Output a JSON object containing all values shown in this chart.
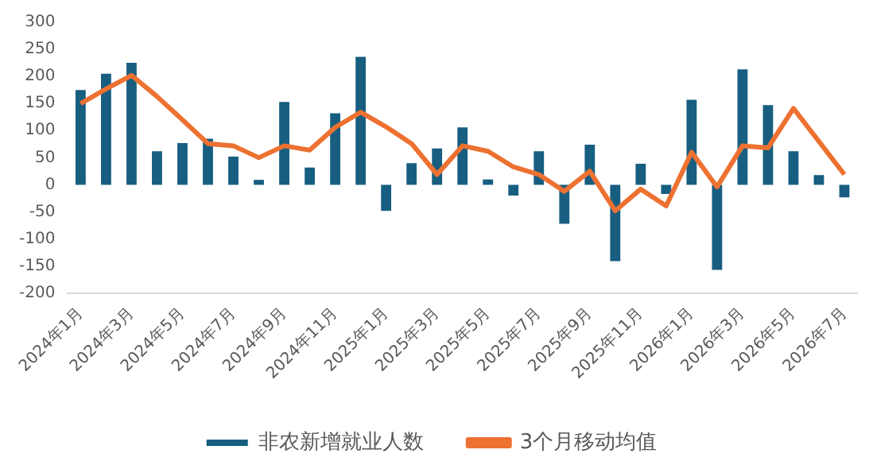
{
  "chart_data": {
    "type": "bar",
    "categories": [
      "2024年1月",
      null,
      "2024年3月",
      null,
      "2024年5月",
      null,
      "2024年7月",
      null,
      "2024年9月",
      null,
      "2024年11月",
      null,
      "2025年1月",
      null,
      "2025年3月",
      null,
      "2025年5月",
      null,
      "2025年7月",
      null,
      "2025年9月",
      null,
      "2025年11月",
      null,
      "2026年1月",
      null,
      "2026年3月",
      null,
      "2026年5月",
      null,
      "2026年7月"
    ],
    "series": [
      {
        "name": "非农新增就业人数",
        "color": "#175e80",
        "values": [
          175,
          205,
          225,
          62,
          77,
          85,
          52,
          9,
          153,
          32,
          132,
          236,
          -48,
          40,
          67,
          106,
          10,
          -20,
          62,
          -72,
          74,
          -141,
          39,
          -17,
          157,
          -157,
          213,
          147,
          62,
          18,
          -23
        ]
      },
      {
        "name": "3个月移动均值",
        "type": "line",
        "color": "#ed7131",
        "values": [
          150,
          177,
          202,
          163,
          120,
          76,
          72,
          50,
          72,
          64,
          106,
          134,
          107,
          76,
          19,
          72,
          62,
          33,
          19,
          -12,
          25,
          -48,
          -8,
          -39,
          60,
          -4,
          72,
          68,
          141,
          80,
          19
        ]
      }
    ],
    "ylim": [
      -200,
      300
    ],
    "yticks": [
      -200,
      -150,
      -100,
      -50,
      0,
      50,
      100,
      150,
      200,
      250,
      300
    ],
    "grid": false,
    "legend": "bottom",
    "marker": "none",
    "line_style": "solid"
  }
}
